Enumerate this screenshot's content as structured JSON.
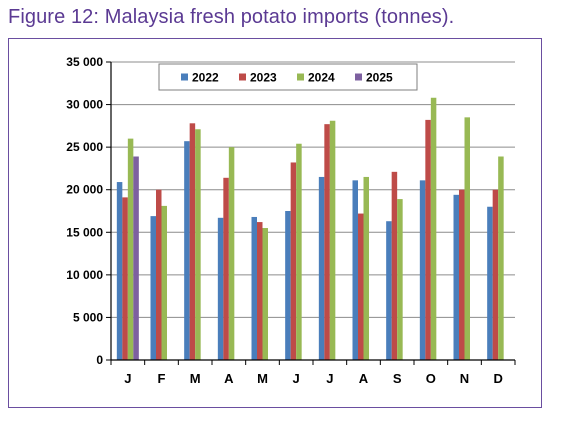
{
  "figure": {
    "title": "Figure 12: Malaysia fresh potato imports (tonnes)."
  },
  "chart_data": {
    "type": "bar",
    "title": "Figure 12: Malaysia fresh potato imports (tonnes).",
    "xlabel": "",
    "ylabel": "",
    "categories": [
      "J",
      "F",
      "M",
      "A",
      "M",
      "J",
      "J",
      "A",
      "S",
      "O",
      "N",
      "D"
    ],
    "ylim": [
      0,
      35000
    ],
    "yticks": [
      0,
      5000,
      10000,
      15000,
      20000,
      25000,
      30000,
      35000
    ],
    "ytick_labels": [
      "0",
      "5 000",
      "10 000",
      "15 000",
      "20 000",
      "25 000",
      "30 000",
      "35 000"
    ],
    "grid": "horizontal major gridlines",
    "legend_position": "top-center",
    "series": [
      {
        "name": "2022",
        "color": "#4a7ebb",
        "values": [
          20900,
          16900,
          25700,
          16700,
          16800,
          17500,
          21500,
          21100,
          16300,
          21100,
          19400,
          18000
        ]
      },
      {
        "name": "2023",
        "color": "#be4b48",
        "values": [
          19100,
          20000,
          27800,
          21400,
          16200,
          23200,
          27700,
          17200,
          22100,
          28200,
          20000,
          20000
        ]
      },
      {
        "name": "2024",
        "color": "#98b954",
        "values": [
          26000,
          18100,
          27100,
          25000,
          15500,
          25400,
          28100,
          21500,
          18900,
          30800,
          28500,
          23900
        ]
      },
      {
        "name": "2025",
        "color": "#7d60a0",
        "values": [
          23900,
          null,
          null,
          null,
          null,
          null,
          null,
          null,
          null,
          null,
          null,
          null
        ]
      }
    ]
  }
}
